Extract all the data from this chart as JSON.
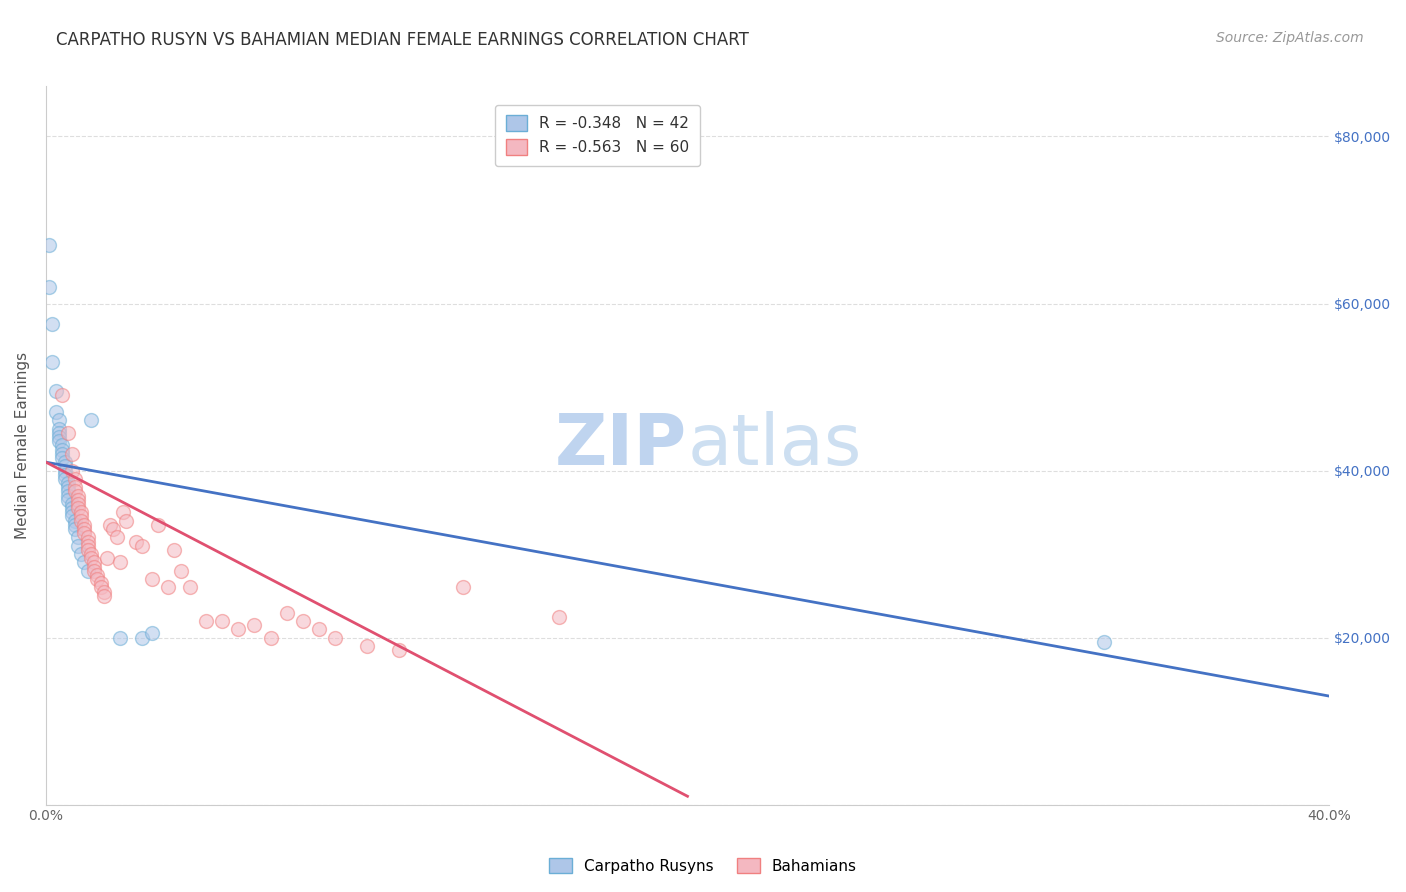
{
  "title": "CARPATHO RUSYN VS BAHAMIAN MEDIAN FEMALE EARNINGS CORRELATION CHART",
  "source": "Source: ZipAtlas.com",
  "ylabel": "Median Female Earnings",
  "yticks": [
    0,
    20000,
    40000,
    60000,
    80000
  ],
  "ytick_labels": [
    "",
    "$20,000",
    "$40,000",
    "$60,000",
    "$80,000"
  ],
  "xlim": [
    0.0,
    0.4
  ],
  "ylim": [
    0,
    86000
  ],
  "watermark_zip": "ZIP",
  "watermark_atlas": "atlas",
  "legend_entries": [
    {
      "label": "R = -0.348   N = 42",
      "color": "#aec6e8"
    },
    {
      "label": "R = -0.563   N = 60",
      "color": "#f4b8c1"
    }
  ],
  "legend_bottom": [
    {
      "label": "Carpatho Rusyns",
      "color": "#aec6e8"
    },
    {
      "label": "Bahamians",
      "color": "#f4b8c1"
    }
  ],
  "blue_scatter": [
    [
      0.001,
      67000
    ],
    [
      0.001,
      62000
    ],
    [
      0.002,
      57500
    ],
    [
      0.002,
      53000
    ],
    [
      0.003,
      49500
    ],
    [
      0.003,
      47000
    ],
    [
      0.004,
      46000
    ],
    [
      0.004,
      45000
    ],
    [
      0.004,
      44500
    ],
    [
      0.004,
      44000
    ],
    [
      0.004,
      43500
    ],
    [
      0.005,
      43000
    ],
    [
      0.005,
      42500
    ],
    [
      0.005,
      42000
    ],
    [
      0.005,
      41500
    ],
    [
      0.006,
      41000
    ],
    [
      0.006,
      40500
    ],
    [
      0.006,
      40000
    ],
    [
      0.006,
      39500
    ],
    [
      0.006,
      39000
    ],
    [
      0.007,
      38500
    ],
    [
      0.007,
      38000
    ],
    [
      0.007,
      37500
    ],
    [
      0.007,
      37000
    ],
    [
      0.007,
      36500
    ],
    [
      0.008,
      36000
    ],
    [
      0.008,
      35500
    ],
    [
      0.008,
      35000
    ],
    [
      0.008,
      34500
    ],
    [
      0.009,
      34000
    ],
    [
      0.009,
      33500
    ],
    [
      0.009,
      33000
    ],
    [
      0.01,
      32000
    ],
    [
      0.01,
      31000
    ],
    [
      0.011,
      30000
    ],
    [
      0.012,
      29000
    ],
    [
      0.013,
      28000
    ],
    [
      0.014,
      46000
    ],
    [
      0.023,
      20000
    ],
    [
      0.03,
      20000
    ],
    [
      0.033,
      20500
    ],
    [
      0.33,
      19500
    ]
  ],
  "pink_scatter": [
    [
      0.005,
      49000
    ],
    [
      0.007,
      44500
    ],
    [
      0.008,
      42000
    ],
    [
      0.008,
      40000
    ],
    [
      0.009,
      39000
    ],
    [
      0.009,
      38000
    ],
    [
      0.009,
      37500
    ],
    [
      0.01,
      37000
    ],
    [
      0.01,
      36500
    ],
    [
      0.01,
      36000
    ],
    [
      0.01,
      35500
    ],
    [
      0.011,
      35000
    ],
    [
      0.011,
      34500
    ],
    [
      0.011,
      34000
    ],
    [
      0.012,
      33500
    ],
    [
      0.012,
      33000
    ],
    [
      0.012,
      32500
    ],
    [
      0.013,
      32000
    ],
    [
      0.013,
      31500
    ],
    [
      0.013,
      31000
    ],
    [
      0.013,
      30500
    ],
    [
      0.014,
      30000
    ],
    [
      0.014,
      29500
    ],
    [
      0.015,
      29000
    ],
    [
      0.015,
      28500
    ],
    [
      0.015,
      28000
    ],
    [
      0.016,
      27500
    ],
    [
      0.016,
      27000
    ],
    [
      0.017,
      26500
    ],
    [
      0.017,
      26000
    ],
    [
      0.018,
      25500
    ],
    [
      0.018,
      25000
    ],
    [
      0.019,
      29500
    ],
    [
      0.02,
      33500
    ],
    [
      0.021,
      33000
    ],
    [
      0.022,
      32000
    ],
    [
      0.023,
      29000
    ],
    [
      0.024,
      35000
    ],
    [
      0.025,
      34000
    ],
    [
      0.028,
      31500
    ],
    [
      0.03,
      31000
    ],
    [
      0.033,
      27000
    ],
    [
      0.035,
      33500
    ],
    [
      0.038,
      26000
    ],
    [
      0.04,
      30500
    ],
    [
      0.042,
      28000
    ],
    [
      0.045,
      26000
    ],
    [
      0.05,
      22000
    ],
    [
      0.055,
      22000
    ],
    [
      0.06,
      21000
    ],
    [
      0.065,
      21500
    ],
    [
      0.07,
      20000
    ],
    [
      0.075,
      23000
    ],
    [
      0.08,
      22000
    ],
    [
      0.085,
      21000
    ],
    [
      0.09,
      20000
    ],
    [
      0.1,
      19000
    ],
    [
      0.11,
      18500
    ],
    [
      0.13,
      26000
    ],
    [
      0.16,
      22500
    ]
  ],
  "blue_line_x": [
    0.0,
    0.4
  ],
  "blue_line_y": [
    41000,
    13000
  ],
  "pink_line_x": [
    0.0,
    0.2
  ],
  "pink_line_y": [
    41000,
    1000
  ],
  "scatter_alpha": 0.55,
  "scatter_size": 100,
  "scatter_linewidth": 1.0,
  "blue_color": "#6baed6",
  "blue_fill": "#aec6e8",
  "pink_color": "#f08080",
  "pink_fill": "#f4b8c1",
  "line_blue": "#4472c4",
  "line_pink": "#e05070",
  "grid_color": "#c8c8c8",
  "grid_style": "--",
  "grid_alpha": 0.6,
  "right_axis_color": "#4472c4",
  "background_color": "#ffffff",
  "title_fontsize": 12,
  "source_fontsize": 10,
  "ylabel_fontsize": 11,
  "tick_fontsize": 10,
  "legend_fontsize": 11,
  "watermark_color_zip": "#b8d0ee",
  "watermark_color_atlas": "#c8dcf0",
  "watermark_fontsize": 52
}
